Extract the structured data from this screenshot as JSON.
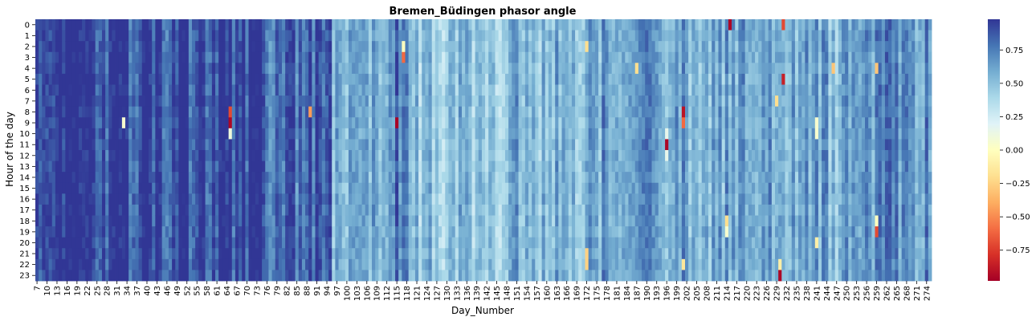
{
  "chart_data": {
    "type": "heatmap",
    "title": "Bremen_Büdingen phasor angle",
    "xlabel": "Day_Number",
    "ylabel": "Hour of the day",
    "x_start": 7,
    "x_end": 275,
    "x_tick_labels": [
      "7",
      "10",
      "13",
      "16",
      "19",
      "22",
      "25",
      "28",
      "31",
      "34",
      "37",
      "40",
      "43",
      "46",
      "49",
      "52",
      "55",
      "58",
      "61",
      "64",
      "67",
      "70",
      "73",
      "76",
      "79",
      "82",
      "85",
      "88",
      "91",
      "94",
      "97",
      "100",
      "103",
      "106",
      "109",
      "112",
      "115",
      "118",
      "121",
      "124",
      "127",
      "130",
      "133",
      "136",
      "139",
      "142",
      "145",
      "148",
      "151",
      "154",
      "157",
      "160",
      "163",
      "166",
      "169",
      "172",
      "175",
      "178",
      "181",
      "184",
      "187",
      "190",
      "193",
      "196",
      "199",
      "202",
      "205",
      "208",
      "211",
      "214",
      "217",
      "220",
      "223",
      "226",
      "229",
      "232",
      "235",
      "238",
      "241",
      "244",
      "247",
      "250",
      "253",
      "256",
      "259",
      "262",
      "265",
      "268",
      "271",
      "274"
    ],
    "y_tick_labels": [
      "0",
      "1",
      "2",
      "3",
      "4",
      "5",
      "6",
      "7",
      "8",
      "9",
      "10",
      "11",
      "12",
      "13",
      "14",
      "15",
      "16",
      "17",
      "18",
      "19",
      "20",
      "21",
      "22",
      "23"
    ],
    "colormap": "RdYlBu",
    "colorbar_ticks": [
      "0.75",
      "0.50",
      "0.25",
      "0.00",
      "−0.25",
      "−0.50",
      "−0.75"
    ],
    "colorbar_tick_values": [
      0.75,
      0.5,
      0.25,
      0.0,
      -0.25,
      -0.5,
      -0.75
    ],
    "value_range": [
      -0.98,
      0.98
    ],
    "column_baseline": [
      {
        "from": 7,
        "to": 15,
        "value": 0.88
      },
      {
        "from": 16,
        "to": 45,
        "value": 0.92
      },
      {
        "from": 46,
        "to": 60,
        "value": 0.9
      },
      {
        "from": 61,
        "to": 75,
        "value": 0.93
      },
      {
        "from": 76,
        "to": 95,
        "value": 0.82
      },
      {
        "from": 96,
        "to": 112,
        "value": 0.55
      },
      {
        "from": 113,
        "to": 118,
        "value": 0.75
      },
      {
        "from": 119,
        "to": 150,
        "value": 0.5
      },
      {
        "from": 151,
        "to": 175,
        "value": 0.55
      },
      {
        "from": 176,
        "to": 200,
        "value": 0.62
      },
      {
        "from": 201,
        "to": 230,
        "value": 0.6
      },
      {
        "from": 231,
        "to": 250,
        "value": 0.58
      },
      {
        "from": 251,
        "to": 275,
        "value": 0.68
      }
    ],
    "notable_cells": [
      {
        "day": 33,
        "hour": 9,
        "value": 0.05
      },
      {
        "day": 65,
        "hour": 8,
        "value": -0.7
      },
      {
        "day": 65,
        "hour": 9,
        "value": -0.95
      },
      {
        "day": 65,
        "hour": 10,
        "value": 0.1
      },
      {
        "day": 89,
        "hour": 8,
        "value": -0.45
      },
      {
        "day": 115,
        "hour": 9,
        "value": -0.97
      },
      {
        "day": 117,
        "hour": 2,
        "value": 0.0
      },
      {
        "day": 117,
        "hour": 3,
        "value": -0.6
      },
      {
        "day": 172,
        "hour": 2,
        "value": -0.2
      },
      {
        "day": 172,
        "hour": 21,
        "value": -0.25
      },
      {
        "day": 172,
        "hour": 22,
        "value": -0.25
      },
      {
        "day": 187,
        "hour": 4,
        "value": -0.2
      },
      {
        "day": 196,
        "hour": 11,
        "value": -0.95
      },
      {
        "day": 196,
        "hour": 10,
        "value": 0.15
      },
      {
        "day": 196,
        "hour": 12,
        "value": 0.15
      },
      {
        "day": 201,
        "hour": 8,
        "value": -0.9
      },
      {
        "day": 201,
        "hour": 9,
        "value": -0.6
      },
      {
        "day": 201,
        "hour": 22,
        "value": -0.15
      },
      {
        "day": 214,
        "hour": 18,
        "value": -0.2
      },
      {
        "day": 214,
        "hour": 19,
        "value": 0.05
      },
      {
        "day": 215,
        "hour": 0,
        "value": -0.95
      },
      {
        "day": 229,
        "hour": 7,
        "value": -0.2
      },
      {
        "day": 230,
        "hour": 22,
        "value": -0.1
      },
      {
        "day": 230,
        "hour": 23,
        "value": -0.95
      },
      {
        "day": 231,
        "hour": 0,
        "value": -0.7
      },
      {
        "day": 231,
        "hour": 5,
        "value": -0.85
      },
      {
        "day": 241,
        "hour": 9,
        "value": 0.05
      },
      {
        "day": 241,
        "hour": 10,
        "value": 0.05
      },
      {
        "day": 241,
        "hour": 20,
        "value": -0.1
      },
      {
        "day": 246,
        "hour": 4,
        "value": -0.3
      },
      {
        "day": 259,
        "hour": 4,
        "value": -0.3
      },
      {
        "day": 259,
        "hour": 18,
        "value": 0.0
      },
      {
        "day": 259,
        "hour": 19,
        "value": -0.7
      }
    ]
  }
}
